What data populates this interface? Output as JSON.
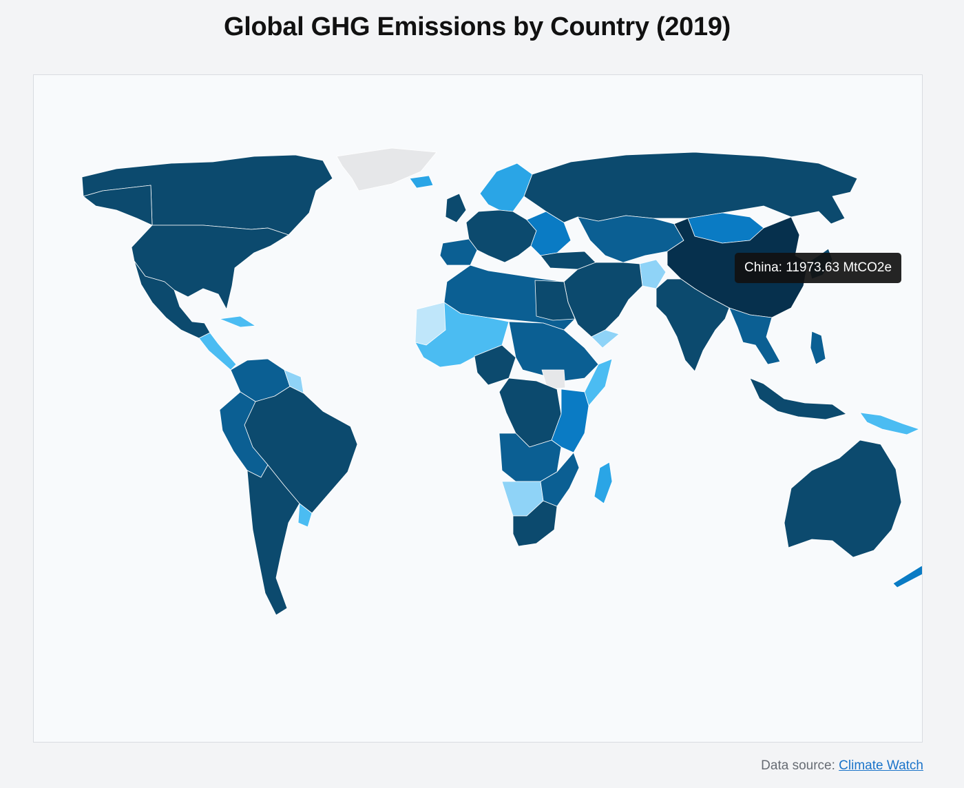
{
  "title": "Global GHG Emissions by Country (2019)",
  "tooltip": {
    "country": "China",
    "text": "China: 11973.63 MtCO2e"
  },
  "source": {
    "label": "Data source:",
    "link_text": "Climate Watch"
  },
  "colors": {
    "background": "#f3f4f6",
    "map_background": "#f8fafc",
    "no_data": "#e6e7e9",
    "highest": "#06304d",
    "very_high": "#0c4a6e",
    "high": "#0b5f93",
    "medium_high": "#0a7bc4",
    "medium": "#2aa5e6",
    "medium_low": "#4bbcf2",
    "low": "#8fd3f7",
    "lowest": "#bfe6fa",
    "link": "#1a73c9"
  },
  "chart_data": {
    "type": "choropleth",
    "metric_unit": "MtCO2e",
    "year": "2019",
    "highlighted": {
      "country": "China",
      "value": 11973.63
    }
  }
}
